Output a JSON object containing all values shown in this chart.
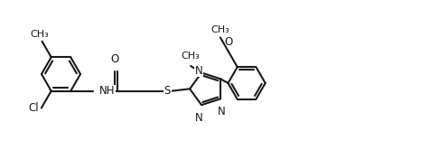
{
  "bg_color": "#ffffff",
  "line_color": "#1a1a1a",
  "line_width": 1.5,
  "font_size": 8.5,
  "fig_width": 4.77,
  "fig_height": 1.56,
  "dpi": 100,
  "xlim": [
    0,
    10
  ],
  "ylim": [
    0,
    3.27
  ]
}
